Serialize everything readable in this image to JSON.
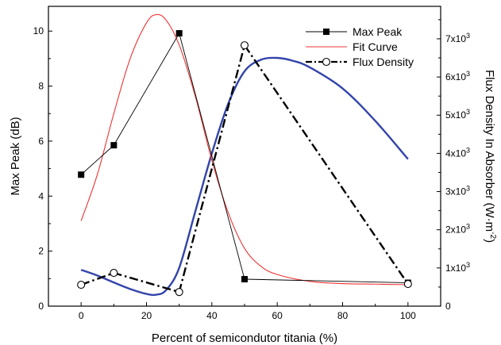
{
  "chart_data": {
    "type": "line",
    "xlabel": "Percent of semicondutor titania (%)",
    "ylabel_left": "Max Peak (dB)",
    "ylabel_right_parts": [
      "Flux Density In Absorber (W·m",
      "-2",
      ")"
    ],
    "xlim": [
      -10,
      110
    ],
    "ylim_left": [
      0,
      10.9
    ],
    "ylim_right": [
      0,
      7.85
    ],
    "x_ticks": [
      "0",
      "20",
      "40",
      "60",
      "80",
      "100"
    ],
    "y_left_ticks": [
      "0",
      "2",
      "4",
      "6",
      "8",
      "10"
    ],
    "y_right_ticks": [
      "0",
      "1x10",
      "2x10",
      "3x10",
      "4x10",
      "5x10",
      "6x10",
      "7x10"
    ],
    "y_right_tick_exponent": "3",
    "right_axis_unit": "x10^3 W·m^-2",
    "legend": [
      "Max Peak",
      "Fit Curve",
      "Flux Density"
    ],
    "legend_position": "top-right",
    "grid": false,
    "series": [
      {
        "name": "Max Peak",
        "axis": "left",
        "style": "thin black line with filled square markers",
        "color": "#000000",
        "x": [
          0,
          10,
          30,
          50,
          100
        ],
        "values": [
          4.78,
          5.85,
          9.92,
          0.98,
          0.85
        ]
      },
      {
        "name": "Fit Curve",
        "axis": "left",
        "style": "thin red smooth line",
        "color": "#ee3333",
        "x": [
          0,
          5,
          10,
          15,
          20,
          23,
          26,
          30,
          35,
          40,
          45,
          50,
          55,
          60,
          70,
          80,
          90,
          100
        ],
        "values": [
          3.1,
          4.8,
          7.0,
          9.0,
          10.3,
          10.6,
          10.4,
          9.5,
          7.6,
          5.3,
          3.4,
          2.1,
          1.45,
          1.15,
          0.9,
          0.82,
          0.8,
          0.78
        ]
      },
      {
        "name": "Flux Density",
        "axis": "right",
        "style": "thick black dash-dot line with open circle markers",
        "color": "#000000",
        "x": [
          0,
          10,
          30,
          50,
          100
        ],
        "values": [
          0.56,
          0.87,
          0.37,
          6.83,
          0.58
        ]
      },
      {
        "name": "",
        "axis": "right",
        "style": "thick blue smooth fit line (no legend entry)",
        "color": "#3344aa",
        "x": [
          0,
          5,
          10,
          15,
          20,
          23,
          26,
          30,
          35,
          40,
          45,
          50,
          55,
          60,
          65,
          70,
          80,
          90,
          100
        ],
        "values": [
          0.95,
          0.8,
          0.62,
          0.45,
          0.32,
          0.3,
          0.42,
          1.0,
          2.5,
          4.0,
          5.3,
          6.15,
          6.45,
          6.5,
          6.42,
          6.25,
          5.7,
          4.85,
          3.85
        ]
      }
    ]
  }
}
